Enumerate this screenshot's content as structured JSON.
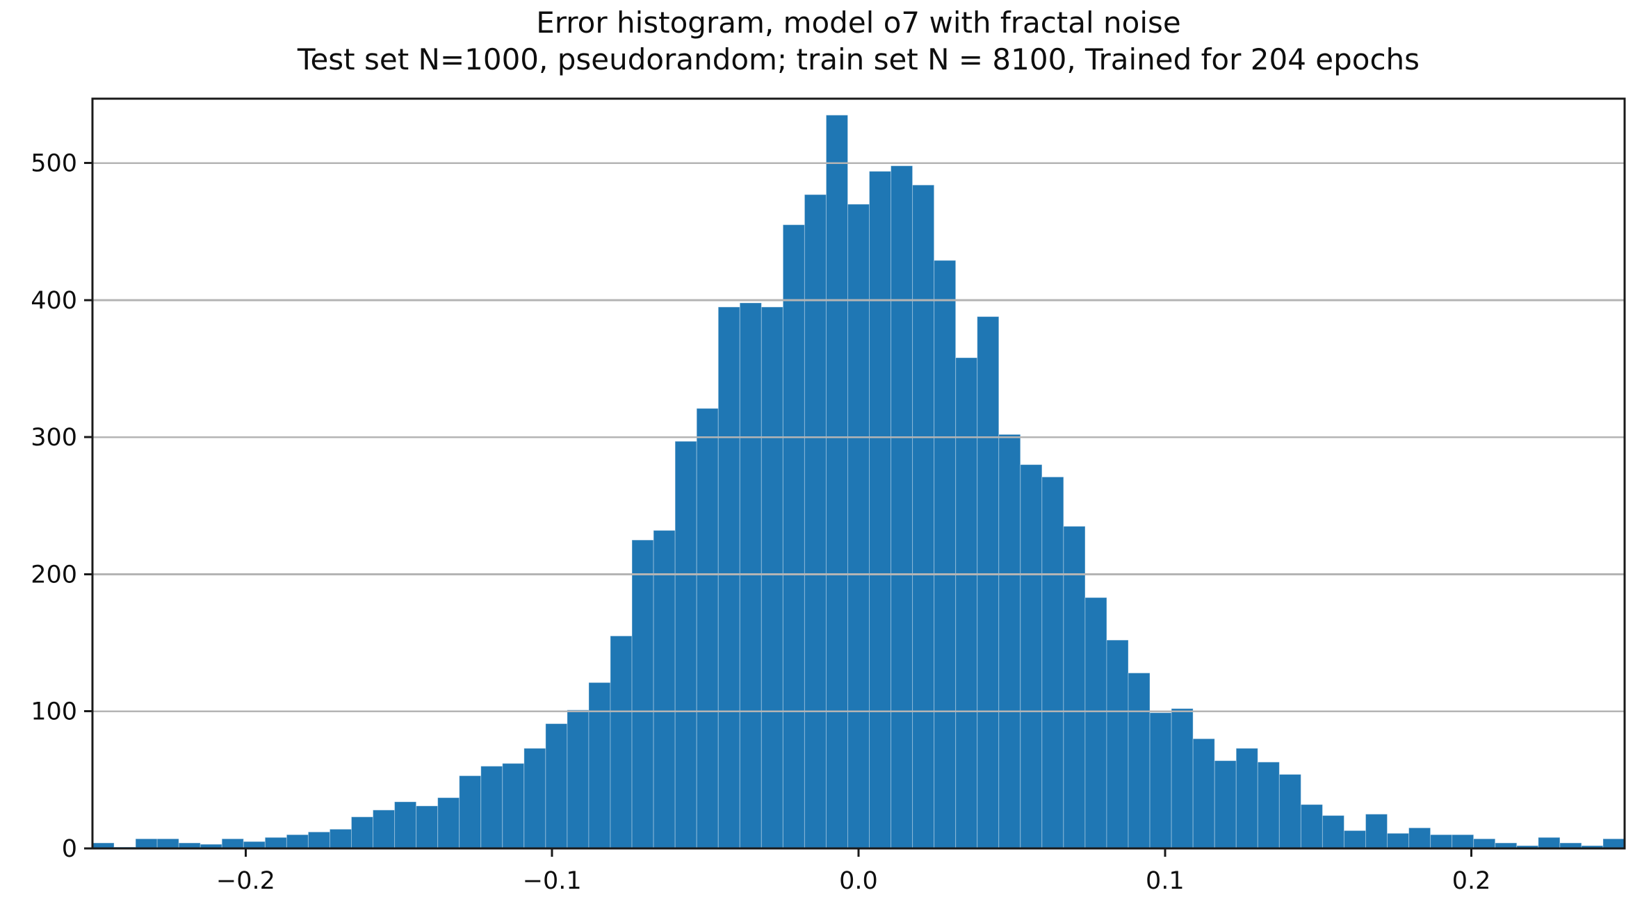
{
  "figure": {
    "title": "Error histogram, model o7 with fractal noise",
    "subtitle": "Test set N=1000, pseudorandom; train set N = 8100, Trained for 204 epochs"
  },
  "chart_data": {
    "type": "bar",
    "subtype": "histogram",
    "title": "Error histogram, model o7 with fractal noise",
    "subtitle": "Test set N=1000, pseudorandom; train set N = 8100, Trained for 204 epochs",
    "xlabel": "",
    "ylabel": "",
    "xlim": [
      -0.25,
      0.25
    ],
    "ylim": [
      0,
      547
    ],
    "grid": "horizontal-only, drawn over bars",
    "legend": "none",
    "bar_color": "#1f77b4",
    "grid_color": "#b4b4b4",
    "spine_color": "#1a1a1a",
    "x_start": -0.25,
    "bin_width": 0.00704,
    "values": [
      4,
      1,
      7,
      7,
      4,
      3,
      7,
      5,
      8,
      10,
      12,
      14,
      23,
      28,
      34,
      31,
      37,
      53,
      60,
      62,
      73,
      91,
      101,
      121,
      155,
      225,
      232,
      297,
      321,
      395,
      398,
      395,
      455,
      477,
      535,
      470,
      494,
      498,
      484,
      429,
      358,
      388,
      302,
      280,
      271,
      235,
      183,
      152,
      128,
      99,
      102,
      80,
      64,
      73,
      63,
      54,
      32,
      24,
      13,
      25,
      11,
      15,
      10,
      10,
      7,
      4,
      2,
      8,
      4,
      2,
      7
    ],
    "xticks": {
      "values": [
        -0.2,
        -0.1,
        0.0,
        0.1,
        0.2
      ],
      "labels": [
        "−0.2",
        "−0.1",
        "0.0",
        "0.1",
        "0.2"
      ]
    },
    "yticks": {
      "values": [
        0,
        100,
        200,
        300,
        400,
        500
      ],
      "labels": [
        "0",
        "100",
        "200",
        "300",
        "400",
        "500"
      ]
    }
  }
}
